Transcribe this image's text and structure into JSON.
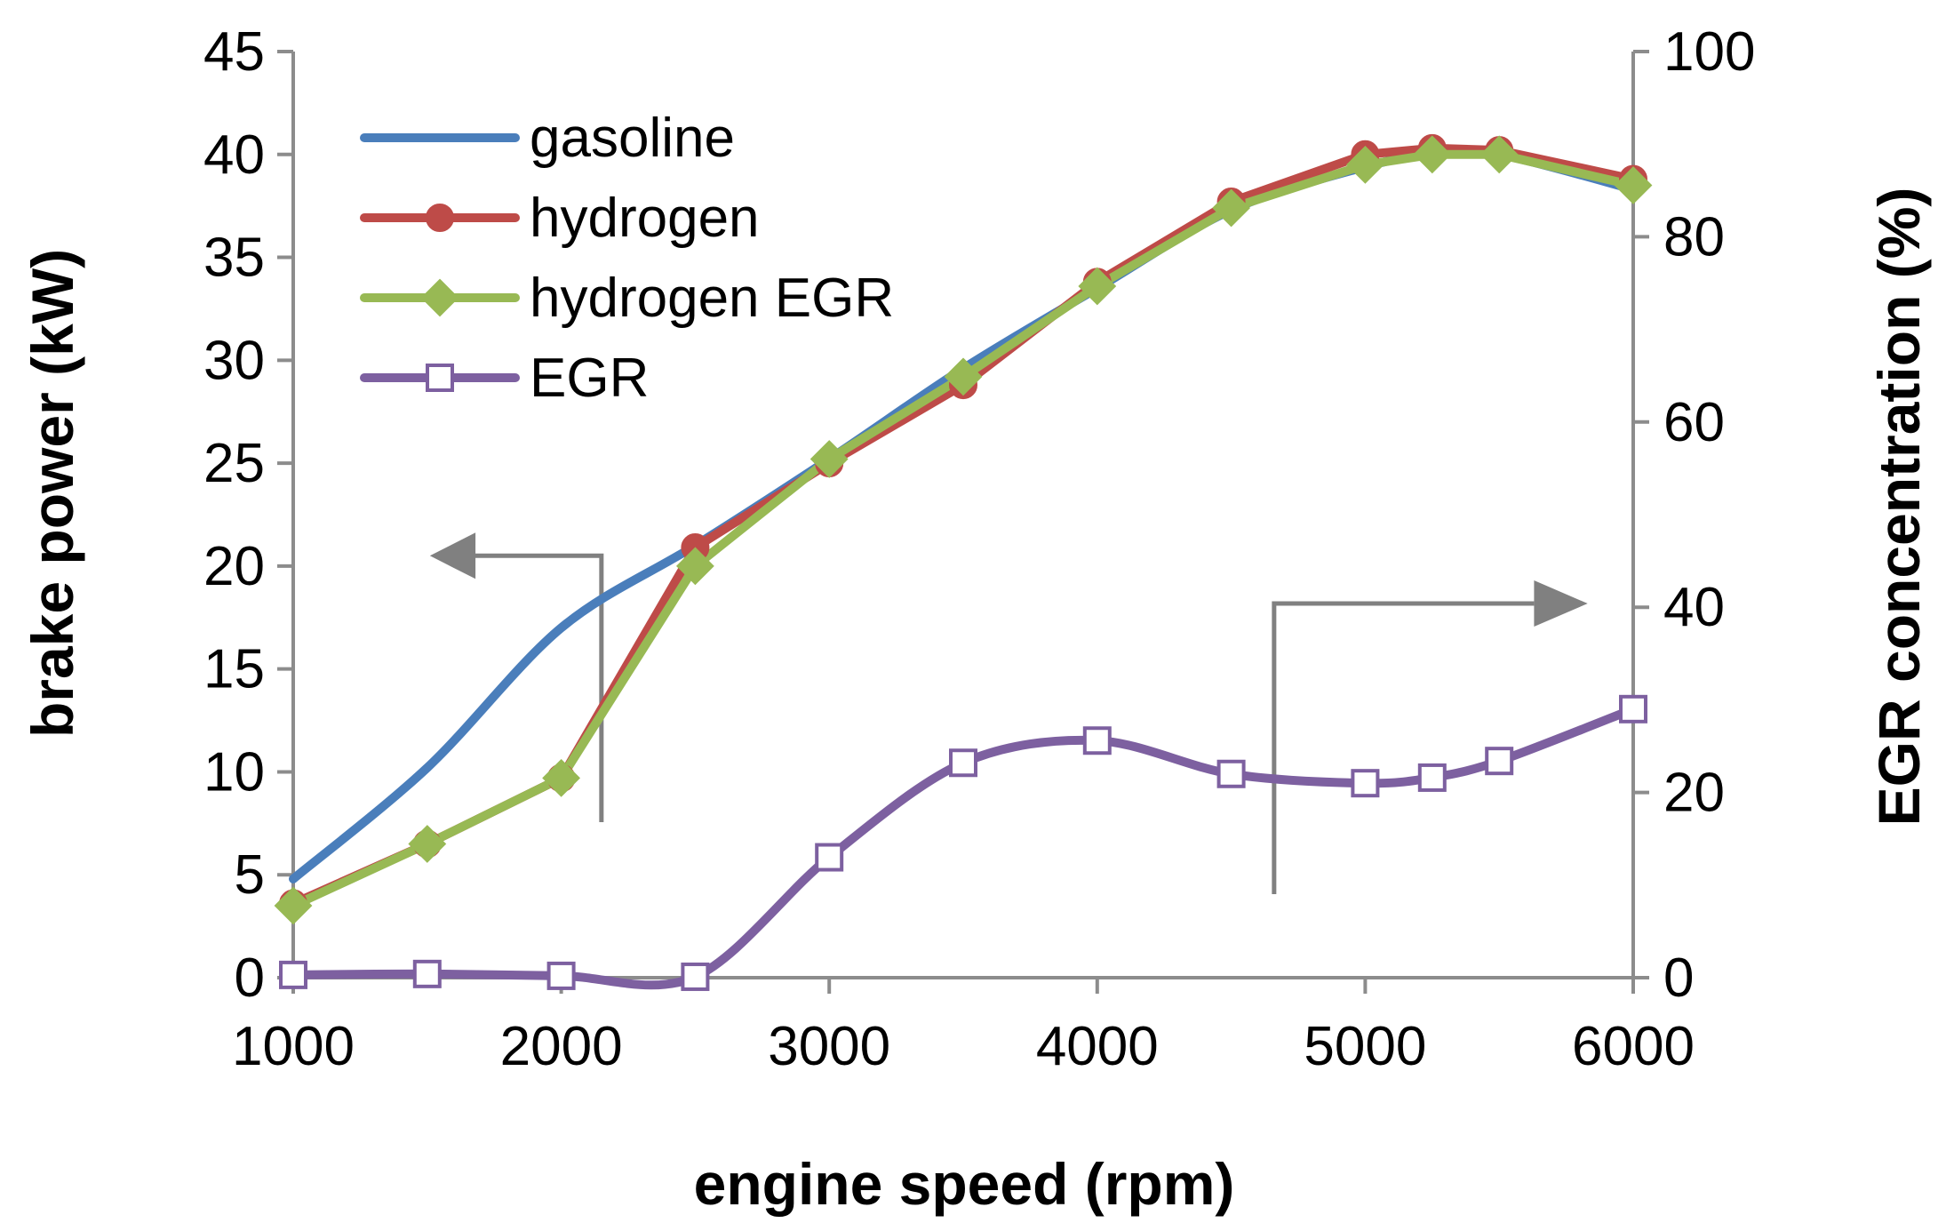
{
  "chart_data": {
    "type": "line",
    "title": "",
    "xlabel": "engine speed (rpm)",
    "ylabel": "brake power (kW)",
    "y2label": "EGR concentration (%)",
    "xlim": [
      1000,
      6000
    ],
    "ylim": [
      0,
      45
    ],
    "y2lim": [
      0,
      100
    ],
    "xticks": [
      1000,
      2000,
      3000,
      4000,
      5000,
      6000
    ],
    "yticks": [
      0,
      5,
      10,
      15,
      20,
      25,
      30,
      35,
      40,
      45
    ],
    "y2ticks": [
      0,
      20,
      40,
      60,
      80,
      100
    ],
    "grid": false,
    "legend_position": "top-left",
    "series": [
      {
        "name": "gasoline",
        "axis": "left",
        "color": "#4a7ebb",
        "marker": "none",
        "smooth": true,
        "x": [
          1000,
          1500,
          2000,
          2500,
          3000,
          3500,
          4000,
          4500,
          5000,
          5250,
          5500,
          6000
        ],
        "values": [
          4.8,
          10.2,
          17.0,
          21.0,
          25.2,
          29.6,
          33.5,
          37.3,
          39.4,
          40.0,
          40.0,
          38.3
        ]
      },
      {
        "name": "hydrogen",
        "axis": "left",
        "color": "#be4b48",
        "marker": "circle",
        "smooth": false,
        "x": [
          1000,
          1500,
          2000,
          2500,
          3000,
          3500,
          4000,
          4500,
          5000,
          5250,
          5500,
          6000
        ],
        "values": [
          3.6,
          6.5,
          9.7,
          20.9,
          25.0,
          28.8,
          33.8,
          37.7,
          40.0,
          40.3,
          40.2,
          38.8
        ]
      },
      {
        "name": "hydrogen EGR",
        "axis": "left",
        "color": "#98b954",
        "marker": "diamond",
        "smooth": false,
        "x": [
          1000,
          1500,
          2000,
          2500,
          3000,
          3500,
          4000,
          4500,
          5000,
          5250,
          5500,
          6000
        ],
        "values": [
          3.5,
          6.5,
          9.7,
          20.0,
          25.2,
          29.2,
          33.6,
          37.4,
          39.5,
          40.0,
          40.0,
          38.5
        ]
      },
      {
        "name": "EGR",
        "axis": "right",
        "color": "#7d60a0",
        "marker": "square",
        "smooth": true,
        "x": [
          1000,
          1500,
          2000,
          2500,
          3000,
          3500,
          4000,
          4500,
          5000,
          5250,
          5500,
          6000
        ],
        "values": [
          0.3,
          0.4,
          0.2,
          0.1,
          13.0,
          23.2,
          25.6,
          22.0,
          21.0,
          21.6,
          23.4,
          29.0
        ]
      }
    ],
    "annotations": [
      {
        "type": "arrow",
        "direction": "left",
        "points_to": "left axis",
        "color": "#808080"
      },
      {
        "type": "arrow",
        "direction": "right",
        "points_to": "right axis",
        "color": "#808080"
      }
    ]
  }
}
